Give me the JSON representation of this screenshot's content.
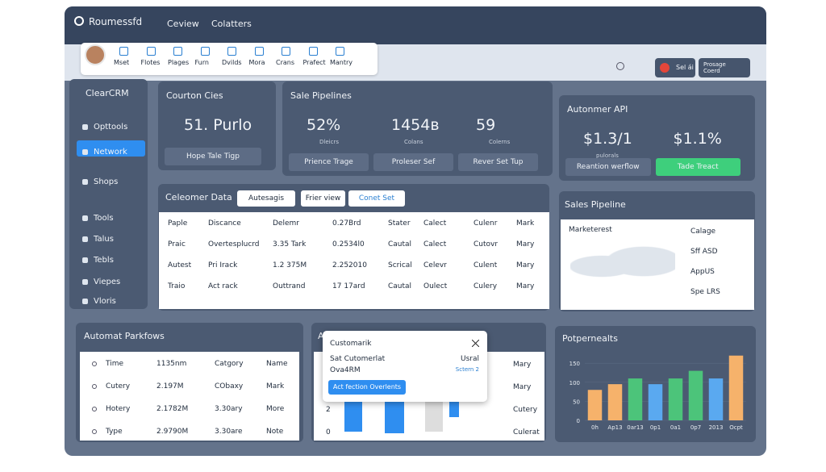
{
  "header": {
    "brand": "Roumessfd",
    "nav": [
      "Ceview",
      "Colatters"
    ]
  },
  "toolbar": [
    "Mset",
    "Flotes",
    "Plages",
    "Furn",
    "Dvilds",
    "Mora",
    "Crans",
    "Prafect",
    "Mantry"
  ],
  "account": {
    "short": "Sel ái",
    "profile": "Prosage Coerd"
  },
  "sidebar": {
    "brand": "ClearCRM",
    "items": [
      "Opttools",
      "Network",
      "Shops",
      "Tools",
      "Talus",
      "Tebls",
      "Viepes",
      "Vloris"
    ],
    "active": 1
  },
  "cards": [
    {
      "title": "Courton Cies",
      "stats": [
        {
          "value": "51. Purlo"
        }
      ],
      "buttons": [
        "Hope Tale Tigp"
      ]
    },
    {
      "title": "Sale Pipelines",
      "stats": [
        {
          "value": "52%",
          "label": "Dleicrs"
        },
        {
          "value": "1454в",
          "label": "Colans"
        },
        {
          "value": "59",
          "label": "Colerns"
        }
      ],
      "buttons": [
        "Prience Trage",
        "Proleser Sef",
        "Rever Set Tup"
      ]
    },
    {
      "title": "Autonmer API",
      "stats": [
        {
          "value": "$1.3/1",
          "label": "pulorals"
        },
        {
          "value": "$1.1%"
        }
      ],
      "buttons": [
        "Reantion werflow",
        "Tade Treact"
      ]
    }
  ],
  "customer_data": {
    "title": "Celeomer Data",
    "filters": [
      "Autesagis",
      "Frier view",
      "Conet Set"
    ],
    "rows": [
      [
        "Paple",
        "Discance",
        "Delemr",
        "0.27Brd",
        "Stater",
        "Calect",
        "Culenr",
        "Mark"
      ],
      [
        "Praic",
        "Overtesplucrd",
        "3.35 Tark",
        "0.2534l0",
        "Cautal",
        "Calect",
        "Cutovr",
        "Mary"
      ],
      [
        "Autest",
        "Pri Irack",
        "1.2 375M",
        "2.252010",
        "Scrical",
        "Celevr",
        "Culent",
        "Mary"
      ],
      [
        "Traio",
        "Act rack",
        "Outtrand",
        "17 17ard",
        "Cautal",
        "Oulect",
        "Culery",
        "Mary"
      ]
    ]
  },
  "sales_pipeline": {
    "title": "Sales Pipeline",
    "map_label": "Marketerest",
    "list": [
      "Calage",
      "Sff ASD",
      "AppUS",
      "Spe LRS"
    ]
  },
  "workflows": {
    "title": "Automat Parkfows",
    "rows": [
      [
        "Time",
        "1135nm",
        "Catgory",
        "Name"
      ],
      [
        "Cutery",
        "2.197M",
        "CObaxy",
        "Mark"
      ],
      [
        "Hotery",
        "2.1782M",
        "3.30ary",
        "More"
      ],
      [
        "Type",
        "2.9790M",
        "3.30are",
        "Note"
      ]
    ]
  },
  "popup_panel": {
    "title": "A",
    "popup": {
      "title": "Customarik",
      "rows": [
        [
          "Sat Cutomerlat",
          "Usral"
        ],
        [
          "Ova4RM",
          "Sctern 2"
        ]
      ],
      "button": "Act fection Overlents"
    },
    "side_numbers": [
      "2",
      "0"
    ],
    "list": [
      "Mary",
      "Mary",
      "Cutery",
      "Culerat"
    ]
  },
  "chart_data": {
    "type": "bar",
    "title": "Potpernealts",
    "categories": [
      "0h",
      "Ap13",
      "0ar13",
      "0p1",
      "0a1",
      "0p7",
      "2013",
      "Ocpt"
    ],
    "values": [
      80,
      95,
      110,
      95,
      110,
      130,
      110,
      170
    ],
    "colors": [
      "#f6b26b",
      "#f6b26b",
      "#4cc47a",
      "#5aa9f0",
      "#4cc47a",
      "#4cc47a",
      "#5aa9f0",
      "#f6b26b"
    ],
    "ylim": [
      0,
      180
    ],
    "yticks": [
      150,
      100,
      50,
      0
    ]
  }
}
